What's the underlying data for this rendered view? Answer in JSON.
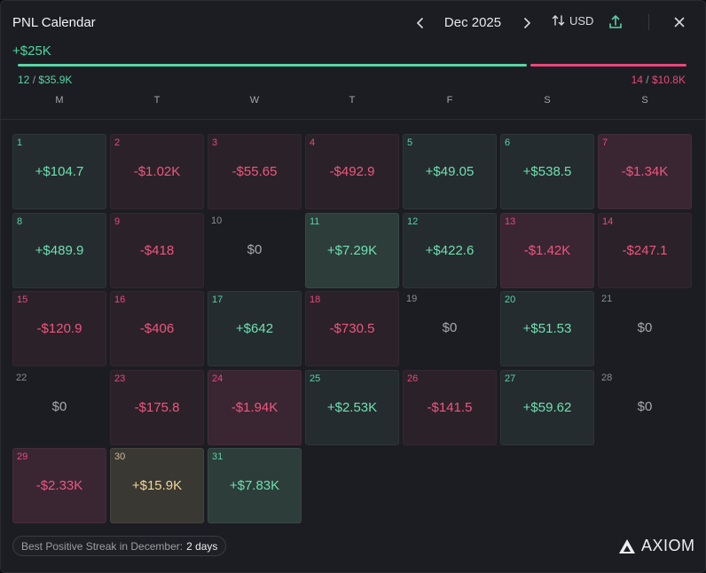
{
  "header": {
    "title": "PNL Calendar",
    "month": "Dec 2025",
    "currency": "USD"
  },
  "summary": {
    "total": "+$25K",
    "wins": "12",
    "win_amount": "$35.9K",
    "losses": "14",
    "loss_amount": "$10.8K",
    "win_ratio": 0.7617
  },
  "weekdays": [
    "M",
    "T",
    "W",
    "T",
    "F",
    "S",
    "S"
  ],
  "days": [
    {
      "day": "1",
      "value": "+$104.7",
      "type": "pos"
    },
    {
      "day": "2",
      "value": "-$1.02K",
      "type": "neg"
    },
    {
      "day": "3",
      "value": "-$55.65",
      "type": "neg"
    },
    {
      "day": "4",
      "value": "-$492.9",
      "type": "neg"
    },
    {
      "day": "5",
      "value": "+$49.05",
      "type": "pos"
    },
    {
      "day": "6",
      "value": "+$538.5",
      "type": "pos"
    },
    {
      "day": "7",
      "value": "-$1.34K",
      "type": "big-neg"
    },
    {
      "day": "8",
      "value": "+$489.9",
      "type": "pos"
    },
    {
      "day": "9",
      "value": "-$418",
      "type": "neg"
    },
    {
      "day": "10",
      "value": "$0",
      "type": "zero"
    },
    {
      "day": "11",
      "value": "+$7.29K",
      "type": "big-pos"
    },
    {
      "day": "12",
      "value": "+$422.6",
      "type": "pos"
    },
    {
      "day": "13",
      "value": "-$1.42K",
      "type": "big-neg"
    },
    {
      "day": "14",
      "value": "-$247.1",
      "type": "neg"
    },
    {
      "day": "15",
      "value": "-$120.9",
      "type": "neg"
    },
    {
      "day": "16",
      "value": "-$406",
      "type": "neg"
    },
    {
      "day": "17",
      "value": "+$642",
      "type": "pos"
    },
    {
      "day": "18",
      "value": "-$730.5",
      "type": "neg"
    },
    {
      "day": "19",
      "value": "$0",
      "type": "zero"
    },
    {
      "day": "20",
      "value": "+$51.53",
      "type": "pos"
    },
    {
      "day": "21",
      "value": "$0",
      "type": "zero"
    },
    {
      "day": "22",
      "value": "$0",
      "type": "zero"
    },
    {
      "day": "23",
      "value": "-$175.8",
      "type": "neg"
    },
    {
      "day": "24",
      "value": "-$1.94K",
      "type": "big-neg"
    },
    {
      "day": "25",
      "value": "+$2.53K",
      "type": "pos"
    },
    {
      "day": "26",
      "value": "-$141.5",
      "type": "neg"
    },
    {
      "day": "27",
      "value": "+$59.62",
      "type": "pos"
    },
    {
      "day": "28",
      "value": "$0",
      "type": "zero"
    },
    {
      "day": "29",
      "value": "-$2.33K",
      "type": "big-neg"
    },
    {
      "day": "30",
      "value": "+$15.9K",
      "type": "gold"
    },
    {
      "day": "31",
      "value": "+$7.83K",
      "type": "big-pos"
    }
  ],
  "footer": {
    "streak_label": "Best Positive Streak in December:",
    "streak_value": "2 days",
    "logo": "AXIOM"
  },
  "colors": {
    "positive": "#58d3a6",
    "negative": "#e8487a",
    "highlight": "#f0d79a"
  },
  "icons": {
    "prev": "chevron-left-icon",
    "next": "chevron-right-icon",
    "currency": "swap-vertical-icon",
    "upload": "upload-icon",
    "close": "close-icon",
    "logo": "axiom-logo-icon"
  }
}
